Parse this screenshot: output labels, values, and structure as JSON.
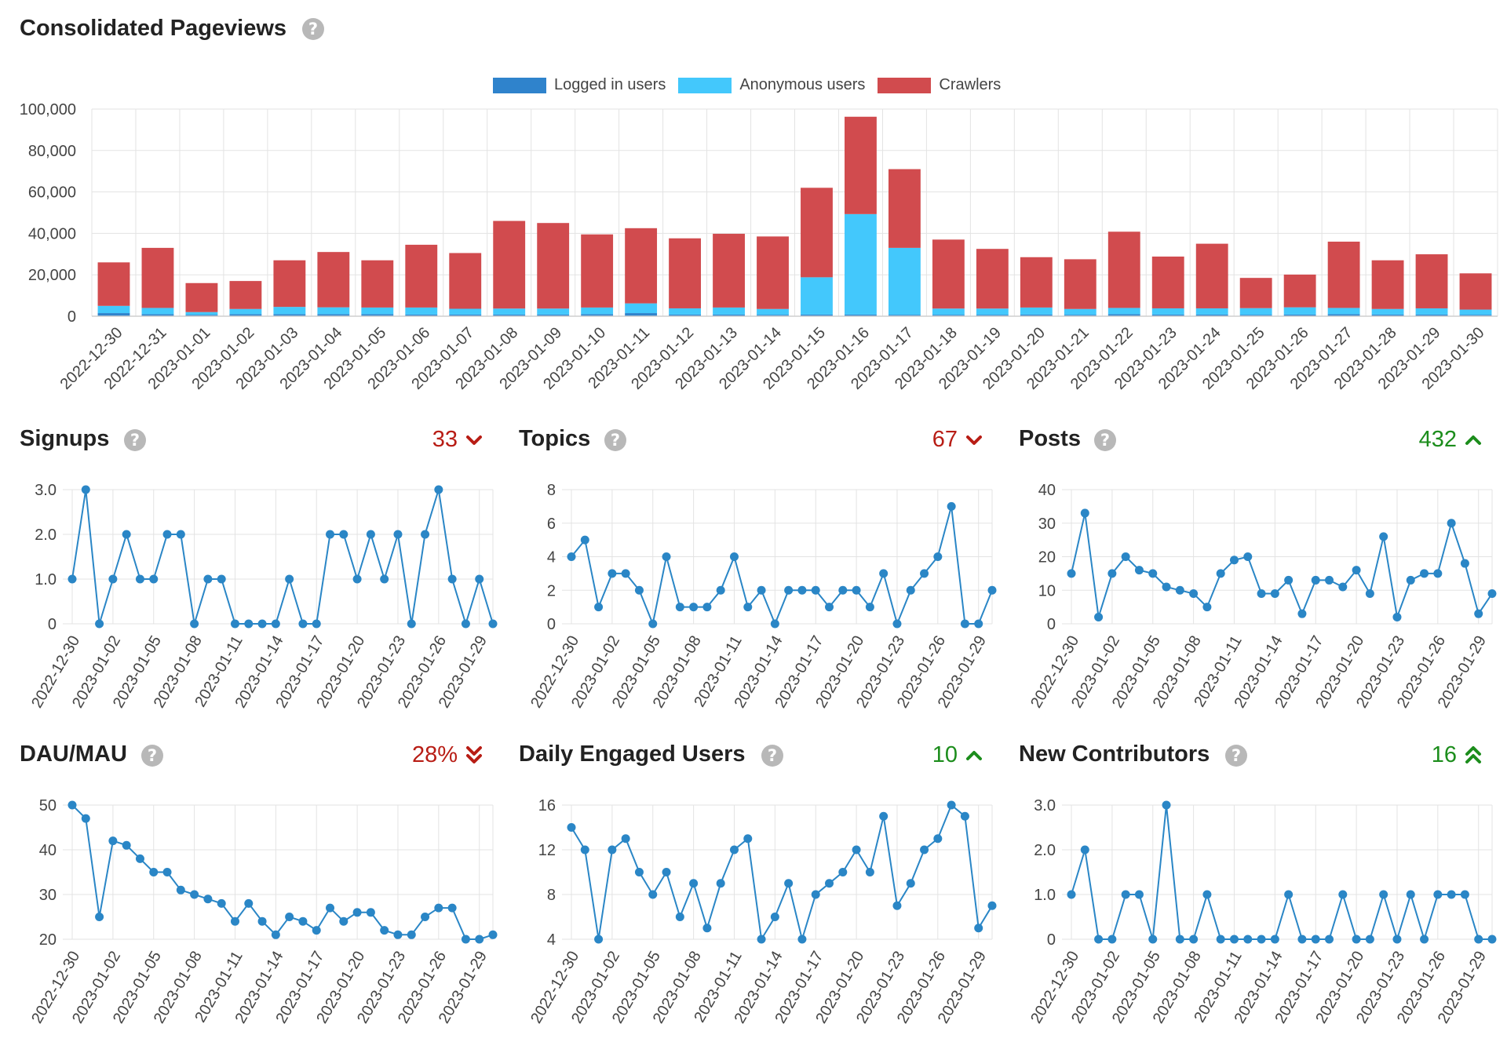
{
  "header": {
    "title": "Consolidated Pageviews"
  },
  "legend": [
    {
      "label": "Logged in users",
      "color": "#2f83cc"
    },
    {
      "label": "Anonymous users",
      "color": "#43c8fc"
    },
    {
      "label": "Crawlers",
      "color": "#d14b4e"
    }
  ],
  "help_icon_glyph": "?",
  "colors": {
    "up": "#1c8d1c",
    "down": "#b81d15",
    "line": "#2a86c6",
    "grid": "#e3e3e3"
  },
  "small_charts": [
    {
      "title": "Signups",
      "trend_value": "33",
      "trend_direction": "down",
      "trend_icon": "chevron-down-icon"
    },
    {
      "title": "Topics",
      "trend_value": "67",
      "trend_direction": "down",
      "trend_icon": "chevron-down-icon"
    },
    {
      "title": "Posts",
      "trend_value": "432",
      "trend_direction": "up",
      "trend_icon": "chevron-up-icon"
    },
    {
      "title": "DAU/MAU",
      "trend_value": "28%",
      "trend_direction": "down",
      "trend_icon": "double-chevron-down-icon"
    },
    {
      "title": "Daily Engaged Users",
      "trend_value": "10",
      "trend_direction": "up",
      "trend_icon": "chevron-up-icon"
    },
    {
      "title": "New Contributors",
      "trend_value": "16",
      "trend_direction": "up",
      "trend_icon": "double-chevron-up-icon"
    }
  ],
  "chart_data": [
    {
      "type": "bar",
      "stacked": true,
      "title": "Consolidated Pageviews",
      "legend_position": "top-center",
      "grid": true,
      "categories": [
        "2022-12-30",
        "2022-12-31",
        "2023-01-01",
        "2023-01-02",
        "2023-01-03",
        "2023-01-04",
        "2023-01-05",
        "2023-01-06",
        "2023-01-07",
        "2023-01-08",
        "2023-01-09",
        "2023-01-10",
        "2023-01-11",
        "2023-01-12",
        "2023-01-13",
        "2023-01-14",
        "2023-01-15",
        "2023-01-16",
        "2023-01-17",
        "2023-01-18",
        "2023-01-19",
        "2023-01-20",
        "2023-01-21",
        "2023-01-22",
        "2023-01-23",
        "2023-01-24",
        "2023-01-25",
        "2023-01-26",
        "2023-01-27",
        "2023-01-28",
        "2023-01-29",
        "2023-01-30"
      ],
      "series": [
        {
          "name": "Logged in users",
          "values": [
            1500,
            1000,
            700,
            1000,
            1000,
            1000,
            1000,
            800,
            800,
            800,
            800,
            1000,
            1500,
            800,
            800,
            700,
            800,
            800,
            700,
            700,
            700,
            800,
            700,
            1000,
            800,
            800,
            700,
            800,
            1000,
            800,
            800,
            700
          ]
        },
        {
          "name": "Anonymous users",
          "values": [
            3500,
            3000,
            1300,
            2500,
            3500,
            3300,
            3200,
            3400,
            2800,
            2900,
            2900,
            3200,
            4700,
            3000,
            3400,
            2800,
            18000,
            48500,
            32300,
            3000,
            3000,
            3400,
            2800,
            3000,
            3000,
            3000,
            3200,
            3500,
            3000,
            2700,
            3000,
            2500
          ]
        },
        {
          "name": "Crawlers",
          "values": [
            21000,
            29000,
            14000,
            13500,
            22500,
            26700,
            22800,
            30300,
            26900,
            42300,
            41300,
            35300,
            36300,
            33800,
            35600,
            35000,
            43200,
            47000,
            38000,
            33300,
            28800,
            24300,
            24000,
            36800,
            25000,
            31200,
            14600,
            15800,
            32000,
            23500,
            26100,
            17500
          ]
        }
      ],
      "ylim": [
        0,
        100000
      ],
      "yticks": [
        0,
        20000,
        40000,
        60000,
        80000,
        100000
      ],
      "ytick_labels": [
        "0",
        "20,000",
        "40,000",
        "60,000",
        "80,000",
        "100,000"
      ]
    },
    {
      "type": "line",
      "title": "Signups",
      "grid": true,
      "x": [
        "2022-12-30",
        "2022-12-31",
        "2023-01-01",
        "2023-01-02",
        "2023-01-03",
        "2023-01-04",
        "2023-01-05",
        "2023-01-06",
        "2023-01-07",
        "2023-01-08",
        "2023-01-09",
        "2023-01-10",
        "2023-01-11",
        "2023-01-12",
        "2023-01-13",
        "2023-01-14",
        "2023-01-15",
        "2023-01-16",
        "2023-01-17",
        "2023-01-18",
        "2023-01-19",
        "2023-01-20",
        "2023-01-21",
        "2023-01-22",
        "2023-01-23",
        "2023-01-24",
        "2023-01-25",
        "2023-01-26",
        "2023-01-27",
        "2023-01-28",
        "2023-01-29",
        "2023-01-30"
      ],
      "values": [
        1,
        3,
        0,
        1,
        2,
        1,
        1,
        2,
        2,
        0,
        1,
        1,
        0,
        0,
        0,
        0,
        1,
        0,
        0,
        2,
        2,
        1,
        2,
        1,
        2,
        0,
        2,
        3,
        1,
        0,
        1,
        0
      ],
      "ylim": [
        0,
        3
      ],
      "yticks": [
        0,
        1,
        2,
        3
      ],
      "ytick_labels": [
        "0",
        "1.0",
        "2.0",
        "3.0"
      ],
      "xtick_labels": [
        "2022-12-30",
        "2023-01-02",
        "2023-01-05",
        "2023-01-08",
        "2023-01-11",
        "2023-01-14",
        "2023-01-17",
        "2023-01-20",
        "2023-01-23",
        "2023-01-26",
        "2023-01-29"
      ]
    },
    {
      "type": "line",
      "title": "Topics",
      "grid": true,
      "x": [
        "2022-12-30",
        "2022-12-31",
        "2023-01-01",
        "2023-01-02",
        "2023-01-03",
        "2023-01-04",
        "2023-01-05",
        "2023-01-06",
        "2023-01-07",
        "2023-01-08",
        "2023-01-09",
        "2023-01-10",
        "2023-01-11",
        "2023-01-12",
        "2023-01-13",
        "2023-01-14",
        "2023-01-15",
        "2023-01-16",
        "2023-01-17",
        "2023-01-18",
        "2023-01-19",
        "2023-01-20",
        "2023-01-21",
        "2023-01-22",
        "2023-01-23",
        "2023-01-24",
        "2023-01-25",
        "2023-01-26",
        "2023-01-27",
        "2023-01-28",
        "2023-01-29",
        "2023-01-30"
      ],
      "values": [
        4,
        5,
        1,
        3,
        3,
        2,
        0,
        4,
        1,
        1,
        1,
        2,
        4,
        1,
        2,
        0,
        2,
        2,
        2,
        1,
        2,
        2,
        1,
        3,
        0,
        2,
        3,
        4,
        7,
        0,
        0,
        2
      ],
      "ylim": [
        0,
        8
      ],
      "yticks": [
        0,
        2,
        4,
        6,
        8
      ],
      "ytick_labels": [
        "0",
        "2",
        "4",
        "6",
        "8"
      ],
      "xtick_labels": [
        "2022-12-30",
        "2023-01-02",
        "2023-01-05",
        "2023-01-08",
        "2023-01-11",
        "2023-01-14",
        "2023-01-17",
        "2023-01-20",
        "2023-01-23",
        "2023-01-26",
        "2023-01-29"
      ]
    },
    {
      "type": "line",
      "title": "Posts",
      "grid": true,
      "x": [
        "2022-12-30",
        "2022-12-31",
        "2023-01-01",
        "2023-01-02",
        "2023-01-03",
        "2023-01-04",
        "2023-01-05",
        "2023-01-06",
        "2023-01-07",
        "2023-01-08",
        "2023-01-09",
        "2023-01-10",
        "2023-01-11",
        "2023-01-12",
        "2023-01-13",
        "2023-01-14",
        "2023-01-15",
        "2023-01-16",
        "2023-01-17",
        "2023-01-18",
        "2023-01-19",
        "2023-01-20",
        "2023-01-21",
        "2023-01-22",
        "2023-01-23",
        "2023-01-24",
        "2023-01-25",
        "2023-01-26",
        "2023-01-27",
        "2023-01-28",
        "2023-01-29",
        "2023-01-30"
      ],
      "values": [
        15,
        33,
        2,
        15,
        20,
        16,
        15,
        11,
        10,
        9,
        5,
        15,
        19,
        20,
        9,
        9,
        13,
        3,
        13,
        13,
        11,
        16,
        9,
        26,
        2,
        13,
        15,
        15,
        30,
        18,
        3,
        9
      ],
      "ylim": [
        0,
        40
      ],
      "yticks": [
        0,
        10,
        20,
        30,
        40
      ],
      "ytick_labels": [
        "0",
        "10",
        "20",
        "30",
        "40"
      ],
      "xtick_labels": [
        "2022-12-30",
        "2023-01-02",
        "2023-01-05",
        "2023-01-08",
        "2023-01-11",
        "2023-01-14",
        "2023-01-17",
        "2023-01-20",
        "2023-01-23",
        "2023-01-26",
        "2023-01-29"
      ]
    },
    {
      "type": "line",
      "title": "DAU/MAU",
      "grid": true,
      "x": [
        "2022-12-30",
        "2022-12-31",
        "2023-01-01",
        "2023-01-02",
        "2023-01-03",
        "2023-01-04",
        "2023-01-05",
        "2023-01-06",
        "2023-01-07",
        "2023-01-08",
        "2023-01-09",
        "2023-01-10",
        "2023-01-11",
        "2023-01-12",
        "2023-01-13",
        "2023-01-14",
        "2023-01-15",
        "2023-01-16",
        "2023-01-17",
        "2023-01-18",
        "2023-01-19",
        "2023-01-20",
        "2023-01-21",
        "2023-01-22",
        "2023-01-23",
        "2023-01-24",
        "2023-01-25",
        "2023-01-26",
        "2023-01-27",
        "2023-01-28",
        "2023-01-29",
        "2023-01-30"
      ],
      "values": [
        50,
        47,
        25,
        42,
        41,
        38,
        35,
        35,
        31,
        30,
        29,
        28,
        24,
        28,
        24,
        21,
        25,
        24,
        22,
        27,
        24,
        26,
        26,
        22,
        21,
        21,
        25,
        27,
        27,
        20,
        20,
        21
      ],
      "ylim": [
        20,
        50
      ],
      "yticks": [
        20,
        30,
        40,
        50
      ],
      "ytick_labels": [
        "20",
        "30",
        "40",
        "50"
      ],
      "xtick_labels": [
        "2022-12-30",
        "2023-01-02",
        "2023-01-05",
        "2023-01-08",
        "2023-01-11",
        "2023-01-14",
        "2023-01-17",
        "2023-01-20",
        "2023-01-23",
        "2023-01-26",
        "2023-01-29"
      ]
    },
    {
      "type": "line",
      "title": "Daily Engaged Users",
      "grid": true,
      "x": [
        "2022-12-30",
        "2022-12-31",
        "2023-01-01",
        "2023-01-02",
        "2023-01-03",
        "2023-01-04",
        "2023-01-05",
        "2023-01-06",
        "2023-01-07",
        "2023-01-08",
        "2023-01-09",
        "2023-01-10",
        "2023-01-11",
        "2023-01-12",
        "2023-01-13",
        "2023-01-14",
        "2023-01-15",
        "2023-01-16",
        "2023-01-17",
        "2023-01-18",
        "2023-01-19",
        "2023-01-20",
        "2023-01-21",
        "2023-01-22",
        "2023-01-23",
        "2023-01-24",
        "2023-01-25",
        "2023-01-26",
        "2023-01-27",
        "2023-01-28",
        "2023-01-29",
        "2023-01-30"
      ],
      "values": [
        14,
        12,
        4,
        12,
        13,
        10,
        8,
        10,
        6,
        9,
        5,
        9,
        12,
        13,
        4,
        6,
        9,
        4,
        8,
        9,
        10,
        12,
        10,
        15,
        7,
        9,
        12,
        13,
        16,
        15,
        5,
        7
      ],
      "ylim": [
        4,
        16
      ],
      "yticks": [
        4,
        8,
        12,
        16
      ],
      "ytick_labels": [
        "4",
        "8",
        "12",
        "16"
      ],
      "xtick_labels": [
        "2022-12-30",
        "2023-01-02",
        "2023-01-05",
        "2023-01-08",
        "2023-01-11",
        "2023-01-14",
        "2023-01-17",
        "2023-01-20",
        "2023-01-23",
        "2023-01-26",
        "2023-01-29"
      ]
    },
    {
      "type": "line",
      "title": "New Contributors",
      "grid": true,
      "x": [
        "2022-12-30",
        "2022-12-31",
        "2023-01-01",
        "2023-01-02",
        "2023-01-03",
        "2023-01-04",
        "2023-01-05",
        "2023-01-06",
        "2023-01-07",
        "2023-01-08",
        "2023-01-09",
        "2023-01-10",
        "2023-01-11",
        "2023-01-12",
        "2023-01-13",
        "2023-01-14",
        "2023-01-15",
        "2023-01-16",
        "2023-01-17",
        "2023-01-18",
        "2023-01-19",
        "2023-01-20",
        "2023-01-21",
        "2023-01-22",
        "2023-01-23",
        "2023-01-24",
        "2023-01-25",
        "2023-01-26",
        "2023-01-27",
        "2023-01-28",
        "2023-01-29",
        "2023-01-30"
      ],
      "values": [
        1,
        2,
        0,
        0,
        1,
        1,
        0,
        3,
        0,
        0,
        1,
        0,
        0,
        0,
        0,
        0,
        1,
        0,
        0,
        0,
        1,
        0,
        0,
        1,
        0,
        1,
        0,
        1,
        1,
        1,
        0,
        0
      ],
      "ylim": [
        0,
        3
      ],
      "yticks": [
        0,
        1,
        2,
        3
      ],
      "ytick_labels": [
        "0",
        "1.0",
        "2.0",
        "3.0"
      ],
      "xtick_labels": [
        "2022-12-30",
        "2023-01-02",
        "2023-01-05",
        "2023-01-08",
        "2023-01-11",
        "2023-01-14",
        "2023-01-17",
        "2023-01-20",
        "2023-01-23",
        "2023-01-26",
        "2023-01-29"
      ]
    }
  ]
}
